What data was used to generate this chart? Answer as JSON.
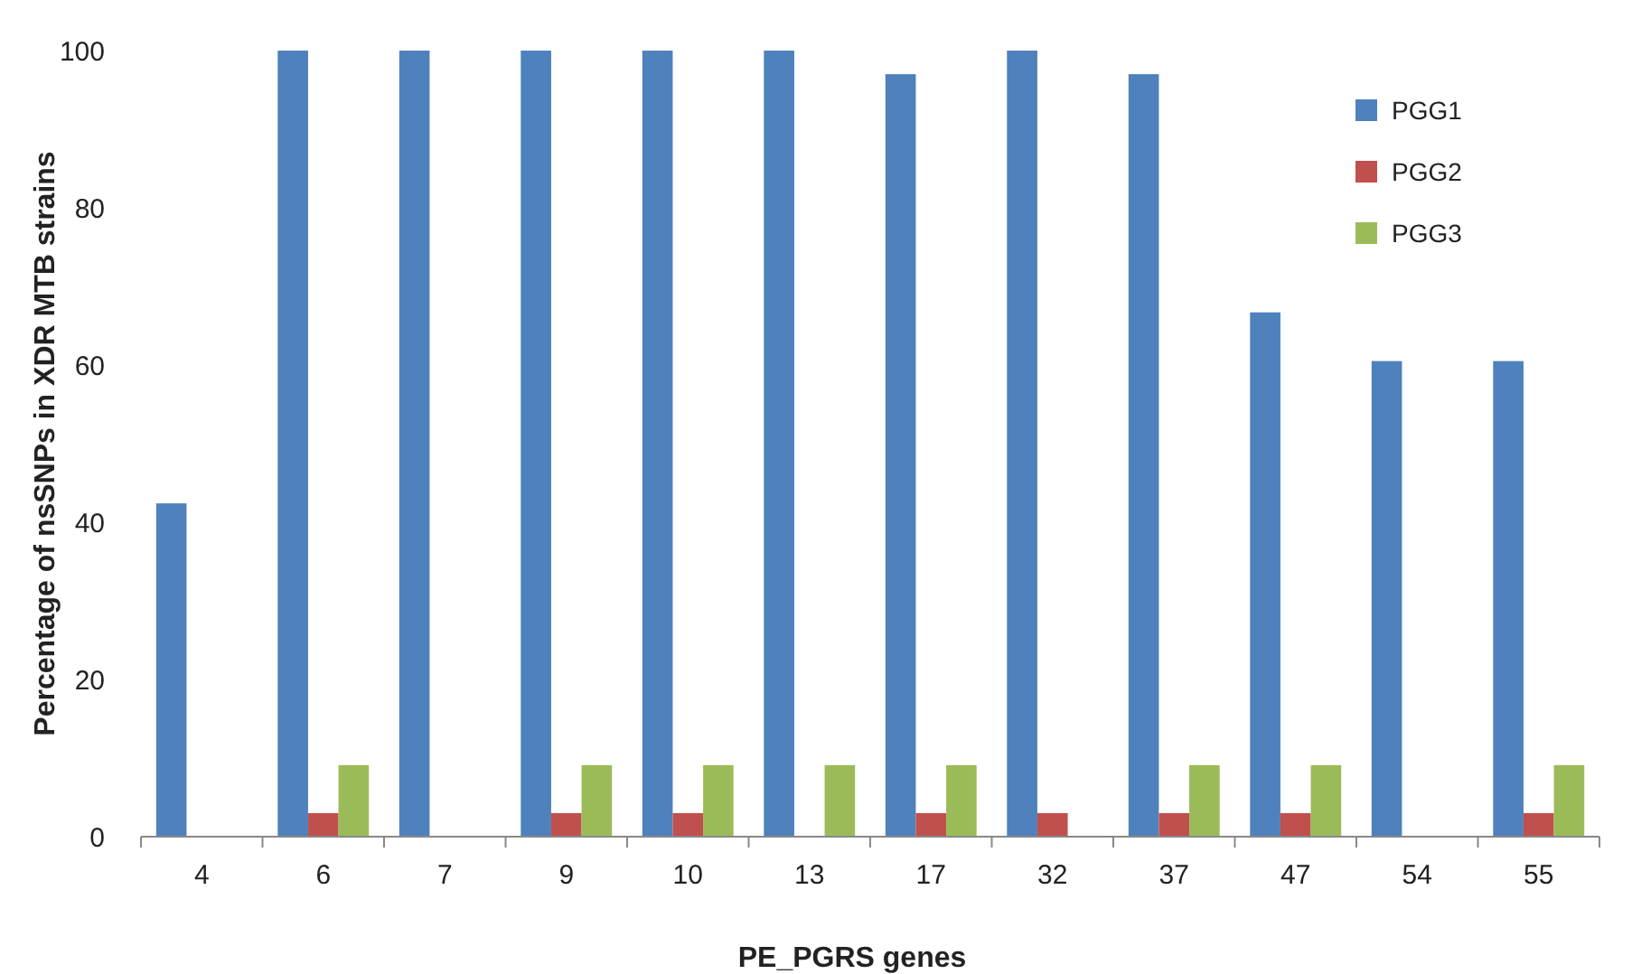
{
  "chart_data": {
    "type": "bar",
    "xlabel": "PE_PGRS genes",
    "ylabel": "Percentage of nsSNPs in XDR MTB strains",
    "categories": [
      "4",
      "6",
      "7",
      "9",
      "10",
      "13",
      "17",
      "32",
      "37",
      "47",
      "54",
      "55"
    ],
    "series": [
      {
        "name": "PGG1",
        "color": "#4f81bd",
        "values": [
          42.4,
          100,
          100,
          100,
          100,
          100,
          97,
          100,
          97,
          66.7,
          60.5,
          60.5
        ]
      },
      {
        "name": "PGG2",
        "color": "#c0504d",
        "values": [
          0,
          3,
          0,
          3,
          3,
          0,
          3,
          3,
          3,
          3,
          0,
          3
        ]
      },
      {
        "name": "PGG3",
        "color": "#9bbb59",
        "values": [
          0,
          9.1,
          0,
          9.1,
          9.1,
          9.1,
          9.1,
          0,
          9.1,
          9.1,
          0,
          9.1
        ]
      }
    ],
    "ylim": [
      0,
      100
    ],
    "yticks": [
      0,
      20,
      40,
      60,
      80,
      100
    ],
    "legend": "top right",
    "grid": false
  }
}
